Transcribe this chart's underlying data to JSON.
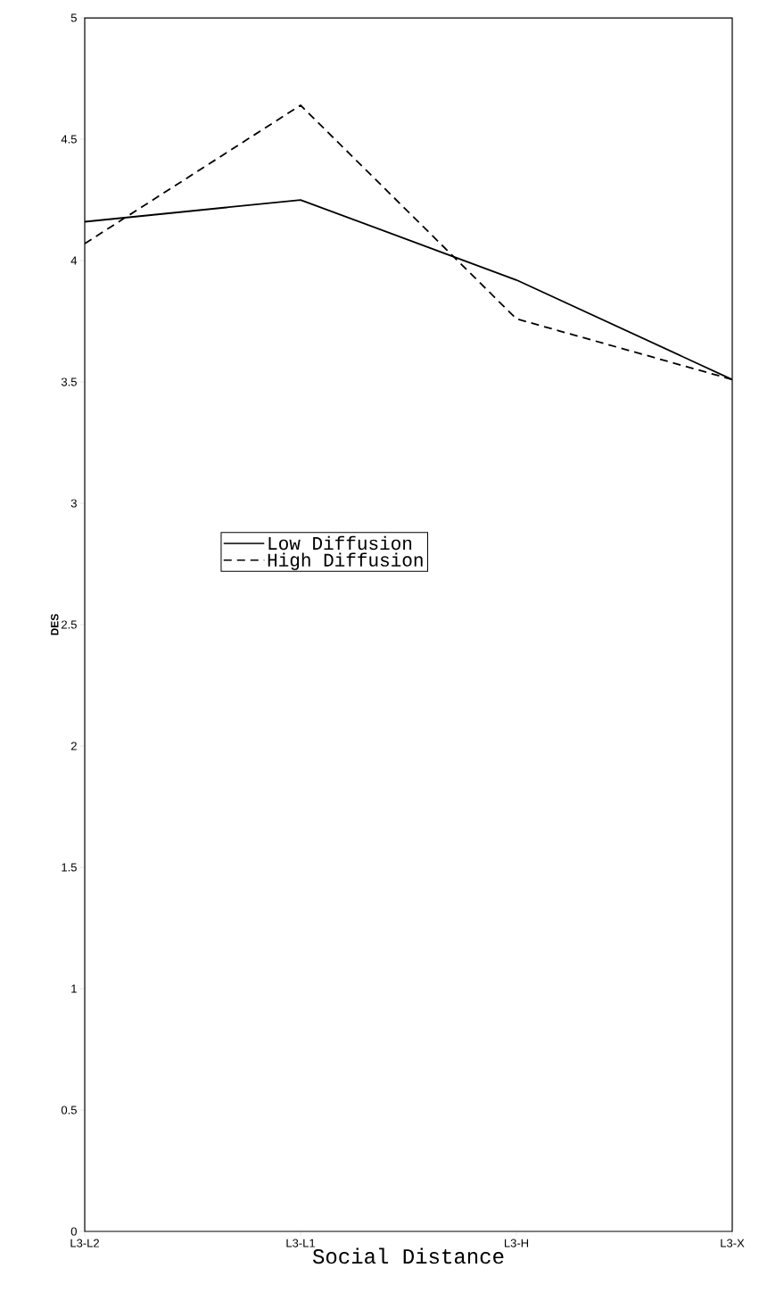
{
  "chart_data": {
    "type": "line",
    "xlabel": "Social Distance",
    "ylabel": "DES",
    "categories": [
      "L3-L2",
      "L3-L1",
      "L3-H",
      "L3-X"
    ],
    "series": [
      {
        "name": "Low Diffusion",
        "color": "#000000",
        "line_style": "solid",
        "values": [
          4.16,
          4.25,
          3.92,
          3.51
        ]
      },
      {
        "name": "High Diffusion",
        "color": "#000000",
        "line_style": "dashed",
        "values": [
          4.07,
          4.64,
          3.76,
          3.51
        ]
      }
    ],
    "ylim": [
      0,
      5
    ],
    "yticks": [
      0,
      0.5,
      1,
      1.5,
      2,
      2.5,
      3,
      3.5,
      4,
      4.5,
      5
    ],
    "grid": false,
    "legend": "center",
    "marker": "none"
  }
}
